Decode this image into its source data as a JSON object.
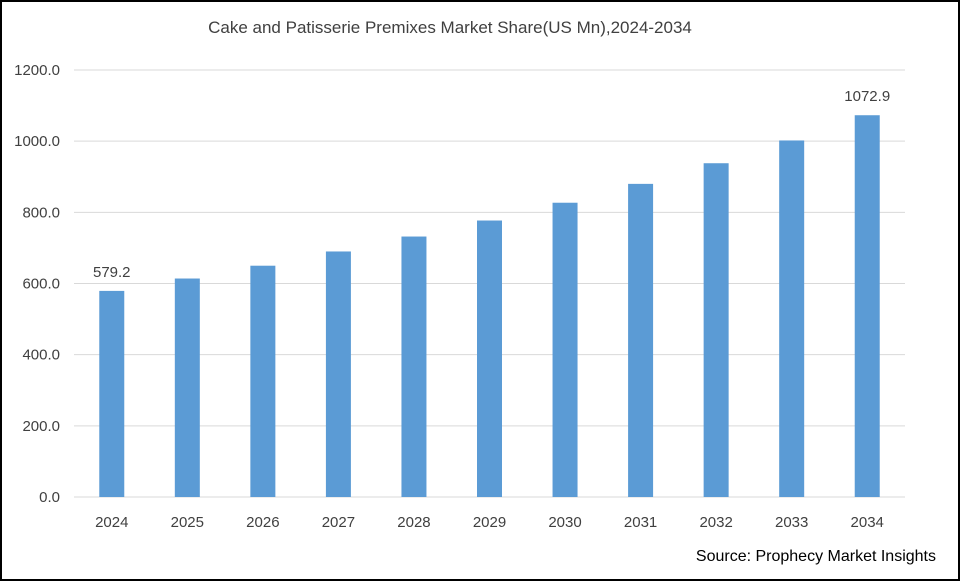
{
  "source": "Source: Prophecy Market Insights",
  "colors": {
    "bar": "#5b9bd5",
    "grid": "#d9d9d9",
    "text": "#404040"
  },
  "chart_data": {
    "type": "bar",
    "title": "Cake and Patisserie Premixes Market Share(US Mn),2024-2034",
    "xlabel": "",
    "ylabel": "",
    "ylim": [
      0,
      1200
    ],
    "yticks": [
      "0.0",
      "200.0",
      "400.0",
      "600.0",
      "800.0",
      "1000.0",
      "1200.0"
    ],
    "categories": [
      "2024",
      "2025",
      "2026",
      "2027",
      "2028",
      "2029",
      "2030",
      "2031",
      "2032",
      "2033",
      "2034"
    ],
    "values": [
      579.2,
      614,
      650,
      690,
      732,
      777,
      827,
      880,
      938,
      1002,
      1072.9
    ],
    "data_labels": {
      "0": "579.2",
      "10": "1072.9"
    },
    "grid": true,
    "legend": "none"
  }
}
